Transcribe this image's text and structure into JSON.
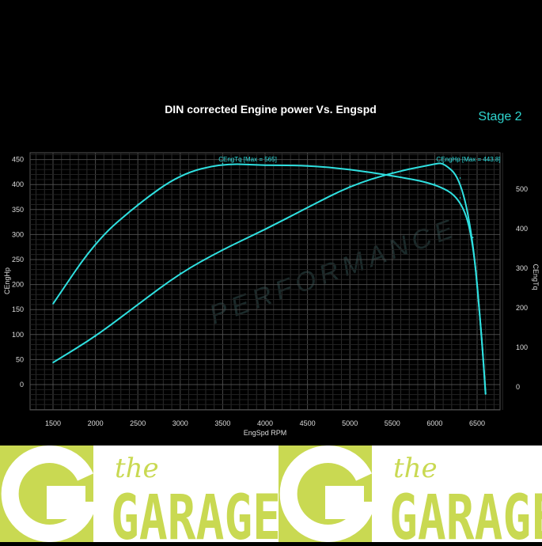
{
  "chart_data": {
    "type": "line",
    "title": "DIN corrected Engine power Vs. Engspd",
    "badge": "Stage 2",
    "xlabel": "EngSpd RPM",
    "ylabel_left": "CEngHp",
    "ylabel_right": "CEngTq",
    "xlim": [
      1200,
      6900
    ],
    "ylim_left": [
      -50,
      470
    ],
    "ylim_right": [
      -60,
      560
    ],
    "x_ticks": [
      1500,
      2000,
      2500,
      3000,
      3500,
      4000,
      4500,
      5000,
      5500,
      6000,
      6500
    ],
    "y_ticks_left": [
      0,
      50,
      100,
      150,
      200,
      250,
      300,
      350,
      400,
      450
    ],
    "y_ticks_right": [
      0,
      100,
      200,
      300,
      400,
      500
    ],
    "grid": true,
    "line_color": "#2fe0e0",
    "series": [
      {
        "name": "CEngHp",
        "label": "CEngHp [Max = 443.8]",
        "axis": "left",
        "x": [
          1500,
          2000,
          2500,
          3000,
          3500,
          4000,
          4500,
          5000,
          5500,
          6000,
          6100,
          6300,
          6450,
          6550,
          6600
        ],
        "y": [
          44,
          96,
          160,
          223,
          270,
          310,
          354,
          397,
          424,
          441,
          443.8,
          413,
          294,
          104,
          -19
        ]
      },
      {
        "name": "CEngTq",
        "label": "CEngTq [Max = 565]",
        "axis": "right",
        "x": [
          1500,
          2000,
          2500,
          3000,
          3500,
          4000,
          4500,
          5000,
          5500,
          6000,
          6300,
          6450,
          6550,
          6600
        ],
        "y": [
          210,
          368,
          462,
          538,
          565,
          560,
          560,
          550,
          534,
          514,
          478,
          378,
          138,
          -18
        ]
      }
    ]
  },
  "logo": {
    "small": "the",
    "big": "GARAGE",
    "color": "#c9d952"
  }
}
